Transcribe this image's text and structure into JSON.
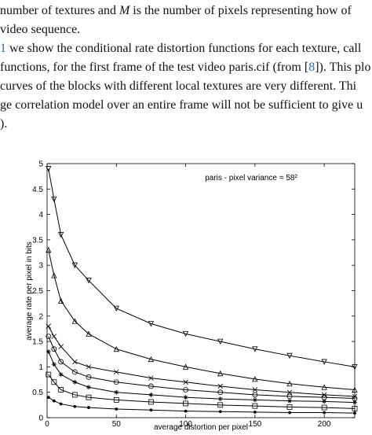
{
  "text_lines": [
    [
      {
        "text": "number of textures and "
      },
      {
        "text": "M",
        "style": "italic"
      },
      {
        "text": " is the number of pixels representing how of"
      }
    ],
    [
      {
        "text": "video sequence."
      }
    ],
    [
      {
        "text": "1",
        "style": "link"
      },
      {
        "text": " we show the conditional rate distortion functions for each texture, call"
      }
    ],
    [
      {
        "text": "functions, for the first frame of the test video paris.cif (from ["
      },
      {
        "text": "8",
        "style": "link"
      },
      {
        "text": "]). This plo"
      }
    ],
    [
      {
        "text": "curves of the blocks with different local textures are very different. Thi"
      }
    ],
    [
      {
        "text": "ge correlation model over an entire frame will not be sufficient to give u"
      }
    ],
    [
      {
        "text": ")."
      }
    ]
  ],
  "chart_data": {
    "type": "line",
    "title": "paris - pixel variance = 58²",
    "x_label": "average distortion per pixel",
    "y_label": "average rate per pixel in bits",
    "x": [
      1,
      5,
      10,
      20,
      30,
      50,
      75,
      100,
      125,
      150,
      175,
      200,
      222
    ],
    "series": [
      {
        "marker": "nabla",
        "color": "#000000",
        "values": [
          4.9,
          4.3,
          3.6,
          3.0,
          2.7,
          2.15,
          1.85,
          1.65,
          1.5,
          1.35,
          1.22,
          1.1,
          1.0
        ]
      },
      {
        "marker": "triangle",
        "color": "#000000",
        "values": [
          3.3,
          2.8,
          2.3,
          1.9,
          1.65,
          1.35,
          1.15,
          1.0,
          0.87,
          0.76,
          0.67,
          0.6,
          0.55
        ]
      },
      {
        "marker": "cross",
        "color": "#000000",
        "values": [
          1.8,
          1.6,
          1.4,
          1.1,
          1.0,
          0.9,
          0.78,
          0.7,
          0.62,
          0.55,
          0.5,
          0.45,
          0.42
        ]
      },
      {
        "marker": "circle",
        "color": "#000000",
        "values": [
          1.6,
          1.35,
          1.1,
          0.9,
          0.8,
          0.7,
          0.62,
          0.55,
          0.5,
          0.45,
          0.42,
          0.4,
          0.38
        ]
      },
      {
        "marker": "star",
        "color": "#000000",
        "values": [
          1.3,
          1.05,
          0.85,
          0.7,
          0.6,
          0.5,
          0.45,
          0.4,
          0.37,
          0.35,
          0.33,
          0.32,
          0.3
        ]
      },
      {
        "marker": "square",
        "color": "#000000",
        "values": [
          0.85,
          0.7,
          0.55,
          0.45,
          0.4,
          0.35,
          0.31,
          0.28,
          0.25,
          0.23,
          0.21,
          0.2,
          0.18
        ]
      },
      {
        "marker": "dot",
        "color": "#000000",
        "values": [
          0.4,
          0.33,
          0.27,
          0.22,
          0.2,
          0.17,
          0.15,
          0.13,
          0.12,
          0.11,
          0.1,
          0.1,
          0.09
        ]
      }
    ],
    "xlim": [
      0,
      222
    ],
    "ylim": [
      0,
      5
    ],
    "xticks": [
      0,
      50,
      100,
      150,
      200
    ],
    "yticks": [
      0,
      0.5,
      1,
      1.5,
      2,
      2.5,
      3,
      3.5,
      4,
      4.5,
      5
    ],
    "grid": false
  }
}
